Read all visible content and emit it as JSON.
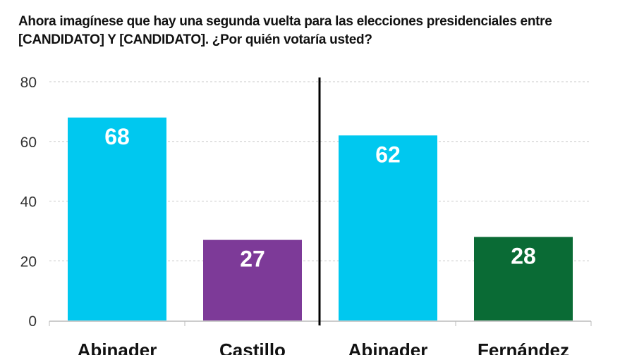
{
  "chart_data": {
    "type": "bar",
    "title": "Ahora imagínese que hay una segunda vuelta para las elecciones presidenciales entre [CANDIDATO] Y [CANDIDATO]. ¿Por quién votaría usted?",
    "categories": [
      "Abinader",
      "Castillo",
      "Abinader",
      "Fernández"
    ],
    "values": [
      68,
      27,
      62,
      28
    ],
    "colors": [
      "#00c8ef",
      "#7d3a98",
      "#00c8ef",
      "#0a6b35"
    ],
    "groups": [
      [
        "Abinader",
        "Castillo"
      ],
      [
        "Abinader",
        "Fernández"
      ]
    ],
    "xlabel": "",
    "ylabel": "",
    "ylim": [
      0,
      80
    ],
    "yticks": [
      0,
      20,
      40,
      60,
      80
    ],
    "grid": true,
    "data_labels": true
  }
}
